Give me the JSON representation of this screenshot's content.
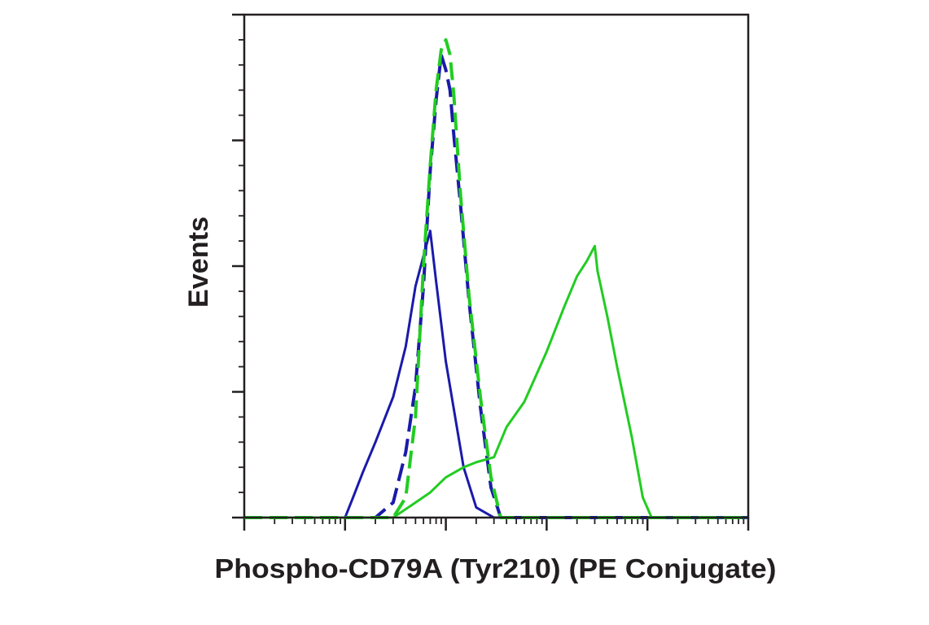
{
  "chart_data": {
    "type": "line",
    "xlabel": "Phospho-CD79A (Tyr210) (PE Conjugate)",
    "ylabel": "Events",
    "x_scale": "log",
    "xlim": [
      0.1,
      10000
    ],
    "ylim": [
      0,
      100
    ],
    "grid": false,
    "legend": "none",
    "series": [
      {
        "color": "#1a1aaa",
        "dash": "solid",
        "points": [
          [
            0.1,
            0
          ],
          [
            1,
            0
          ],
          [
            1.2,
            4
          ],
          [
            1.5,
            9
          ],
          [
            2,
            15
          ],
          [
            3,
            24
          ],
          [
            4,
            34
          ],
          [
            5,
            46
          ],
          [
            6,
            52
          ],
          [
            7,
            57
          ],
          [
            8,
            47
          ],
          [
            10,
            31
          ],
          [
            15,
            10
          ],
          [
            20,
            2
          ],
          [
            30,
            0
          ],
          [
            100,
            0
          ],
          [
            10000,
            0
          ]
        ]
      },
      {
        "color": "#1a1aaa",
        "dash": "dashed",
        "points": [
          [
            0.1,
            0
          ],
          [
            2,
            0
          ],
          [
            3,
            3
          ],
          [
            4,
            13
          ],
          [
            5,
            26
          ],
          [
            6,
            46
          ],
          [
            7,
            69
          ],
          [
            8,
            83
          ],
          [
            9,
            92
          ],
          [
            10,
            89
          ],
          [
            11,
            85
          ],
          [
            12,
            76
          ],
          [
            14,
            62
          ],
          [
            17,
            43
          ],
          [
            22,
            22
          ],
          [
            28,
            6
          ],
          [
            35,
            0
          ],
          [
            10000,
            0
          ]
        ]
      },
      {
        "color": "#22cc22",
        "dash": "dashed",
        "points": [
          [
            0.1,
            0
          ],
          [
            3,
            0
          ],
          [
            4,
            4
          ],
          [
            5,
            20
          ],
          [
            6,
            50
          ],
          [
            7,
            70
          ],
          [
            8,
            85
          ],
          [
            9,
            93
          ],
          [
            10,
            95
          ],
          [
            11,
            92
          ],
          [
            12,
            84
          ],
          [
            14,
            64
          ],
          [
            17,
            44
          ],
          [
            22,
            24
          ],
          [
            28,
            8
          ],
          [
            35,
            0
          ],
          [
            10000,
            0
          ]
        ]
      },
      {
        "color": "#22cc22",
        "dash": "solid",
        "points": [
          [
            0.1,
            0
          ],
          [
            3,
            0
          ],
          [
            5,
            3
          ],
          [
            7,
            5
          ],
          [
            10,
            8
          ],
          [
            15,
            10
          ],
          [
            20,
            11
          ],
          [
            30,
            12
          ],
          [
            40,
            18
          ],
          [
            60,
            23
          ],
          [
            100,
            33
          ],
          [
            150,
            42
          ],
          [
            200,
            48
          ],
          [
            250,
            51
          ],
          [
            300,
            54
          ],
          [
            320,
            49
          ],
          [
            400,
            40
          ],
          [
            500,
            30
          ],
          [
            700,
            16
          ],
          [
            900,
            4
          ],
          [
            1100,
            0
          ],
          [
            10000,
            0
          ]
        ]
      }
    ]
  }
}
